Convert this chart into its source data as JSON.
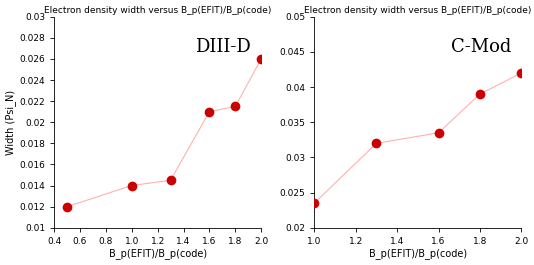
{
  "left": {
    "title": "Electron density width versus B_p(EFIT)/B_p(code)",
    "xlabel": "B_p(EFIT)/B_p(code)",
    "ylabel": "Width (Psi_N)",
    "label": "DIII-D",
    "x": [
      0.5,
      1.0,
      1.3,
      1.6,
      1.8,
      2.0
    ],
    "y": [
      0.012,
      0.014,
      0.0145,
      0.021,
      0.0215,
      0.026
    ],
    "xlim": [
      0.4,
      2.0
    ],
    "ylim": [
      0.01,
      0.03
    ],
    "xticks": [
      0.4,
      0.6,
      0.8,
      1.0,
      1.2,
      1.4,
      1.6,
      1.8,
      2.0
    ],
    "yticks": [
      0.01,
      0.012,
      0.014,
      0.016,
      0.018,
      0.02,
      0.022,
      0.024,
      0.026,
      0.028,
      0.03
    ]
  },
  "right": {
    "title": "Electron density width versus B_p(EFIT)/B_p(code)",
    "xlabel": "B_p(EFIT)/B_p(code)",
    "ylabel": "",
    "label": "C-Mod",
    "x": [
      1.0,
      1.3,
      1.6,
      1.8,
      2.0
    ],
    "y": [
      0.0235,
      0.032,
      0.0335,
      0.039,
      0.042
    ],
    "xlim": [
      1.0,
      2.0
    ],
    "ylim": [
      0.02,
      0.05
    ],
    "xticks": [
      1.0,
      1.2,
      1.4,
      1.6,
      1.8,
      2.0
    ],
    "yticks": [
      0.02,
      0.025,
      0.03,
      0.035,
      0.04,
      0.045,
      0.05
    ]
  },
  "line_color": "#FFB0B0",
  "marker_color": "#CC0000",
  "marker_size": 7,
  "title_fontsize": 6.5,
  "label_fontsize": 7,
  "tick_fontsize": 6.5,
  "annotation_fontsize": 13,
  "fig_width": 5.34,
  "fig_height": 2.65,
  "dpi": 100
}
